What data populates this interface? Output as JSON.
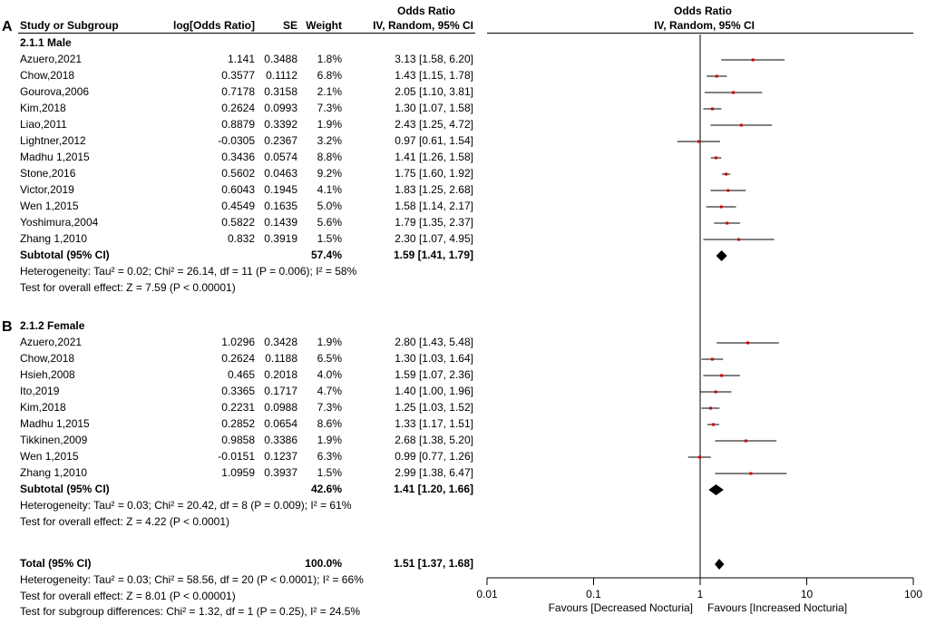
{
  "panels": {
    "a": "A",
    "b": "B"
  },
  "headers": {
    "study": "Study or Subgroup",
    "logor": "log[Odds Ratio]",
    "se": "SE",
    "weight": "Weight",
    "ci_title": "Odds Ratio",
    "ci_method": "IV, Random, 95% CI",
    "plot_title": "Odds Ratio",
    "plot_method": "IV, Random, 95% CI"
  },
  "groups": [
    {
      "label": "2.1.1 Male",
      "studies": [
        {
          "name": "Azuero,2021",
          "logor": "1.141",
          "se": "0.3488",
          "weight": "1.8%",
          "ci": "3.13 [1.58, 6.20]"
        },
        {
          "name": "Chow,2018",
          "logor": "0.3577",
          "se": "0.1112",
          "weight": "6.8%",
          "ci": "1.43 [1.15, 1.78]"
        },
        {
          "name": "Gourova,2006",
          "logor": "0.7178",
          "se": "0.3158",
          "weight": "2.1%",
          "ci": "2.05 [1.10, 3.81]"
        },
        {
          "name": "Kim,2018",
          "logor": "0.2624",
          "se": "0.0993",
          "weight": "7.3%",
          "ci": "1.30 [1.07, 1.58]"
        },
        {
          "name": "Liao,2011",
          "logor": "0.8879",
          "se": "0.3392",
          "weight": "1.9%",
          "ci": "2.43 [1.25, 4.72]"
        },
        {
          "name": "Lightner,2012",
          "logor": "-0.0305",
          "se": "0.2367",
          "weight": "3.2%",
          "ci": "0.97 [0.61, 1.54]"
        },
        {
          "name": "Madhu 1,2015",
          "logor": "0.3436",
          "se": "0.0574",
          "weight": "8.8%",
          "ci": "1.41 [1.26, 1.58]"
        },
        {
          "name": "Stone,2016",
          "logor": "0.5602",
          "se": "0.0463",
          "weight": "9.2%",
          "ci": "1.75 [1.60, 1.92]"
        },
        {
          "name": "Victor,2019",
          "logor": "0.6043",
          "se": "0.1945",
          "weight": "4.1%",
          "ci": "1.83 [1.25, 2.68]"
        },
        {
          "name": "Wen 1,2015",
          "logor": "0.4549",
          "se": "0.1635",
          "weight": "5.0%",
          "ci": "1.58 [1.14, 2.17]"
        },
        {
          "name": "Yoshimura,2004",
          "logor": "0.5822",
          "se": "0.1439",
          "weight": "5.6%",
          "ci": "1.79 [1.35, 2.37]"
        },
        {
          "name": "Zhang 1,2010",
          "logor": "0.832",
          "se": "0.3919",
          "weight": "1.5%",
          "ci": "2.30 [1.07, 4.95]"
        }
      ],
      "subtotal": {
        "label": "Subtotal (95% CI)",
        "weight": "57.4%",
        "ci": "1.59 [1.41, 1.79]"
      },
      "heterogeneity": "Heterogeneity: Tau² = 0.02; Chi² = 26.14, df = 11 (P = 0.006); I² = 58%",
      "overall": "Test for overall effect: Z = 7.59 (P < 0.00001)"
    },
    {
      "label": "2.1.2 Female",
      "studies": [
        {
          "name": "Azuero,2021",
          "logor": "1.0296",
          "se": "0.3428",
          "weight": "1.9%",
          "ci": "2.80 [1.43, 5.48]"
        },
        {
          "name": "Chow,2018",
          "logor": "0.2624",
          "se": "0.1188",
          "weight": "6.5%",
          "ci": "1.30 [1.03, 1.64]"
        },
        {
          "name": "Hsieh,2008",
          "logor": "0.465",
          "se": "0.2018",
          "weight": "4.0%",
          "ci": "1.59 [1.07, 2.36]"
        },
        {
          "name": "Ito,2019",
          "logor": "0.3365",
          "se": "0.1717",
          "weight": "4.7%",
          "ci": "1.40 [1.00, 1.96]"
        },
        {
          "name": "Kim,2018",
          "logor": "0.2231",
          "se": "0.0988",
          "weight": "7.3%",
          "ci": "1.25 [1.03, 1.52]"
        },
        {
          "name": "Madhu 1,2015",
          "logor": "0.2852",
          "se": "0.0654",
          "weight": "8.6%",
          "ci": "1.33 [1.17, 1.51]"
        },
        {
          "name": "Tikkinen,2009",
          "logor": "0.9858",
          "se": "0.3386",
          "weight": "1.9%",
          "ci": "2.68 [1.38, 5.20]"
        },
        {
          "name": "Wen 1,2015",
          "logor": "-0.0151",
          "se": "0.1237",
          "weight": "6.3%",
          "ci": "0.99 [0.77, 1.26]"
        },
        {
          "name": "Zhang 1,2010",
          "logor": "1.0959",
          "se": "0.3937",
          "weight": "1.5%",
          "ci": "2.99 [1.38, 6.47]"
        }
      ],
      "subtotal": {
        "label": "Subtotal (95% CI)",
        "weight": "42.6%",
        "ci": "1.41 [1.20, 1.66]"
      },
      "heterogeneity": "Heterogeneity: Tau² = 0.03; Chi² = 20.42, df = 8 (P = 0.009); I² = 61%",
      "overall": "Test for overall effect: Z = 4.22 (P < 0.0001)"
    }
  ],
  "total": {
    "label": "Total (95% CI)",
    "weight": "100.0%",
    "ci": "1.51 [1.37, 1.68]",
    "heterogeneity": "Heterogeneity: Tau² = 0.03; Chi² = 58.56, df = 20 (P < 0.0001); I² = 66%",
    "overall": "Test for overall effect: Z = 8.01 (P < 0.00001)",
    "subgroup_diff": "Test for subgroup differences: Chi² = 1.32, df = 1 (P = 0.25), I² = 24.5%"
  },
  "colors": {
    "point": "#cc0000",
    "line": "#000000"
  },
  "chart_data": {
    "type": "forest",
    "title": "Odds Ratio",
    "subtitle": "IV, Random, 95% CI",
    "x_scale": "log",
    "xlim": [
      0.01,
      100
    ],
    "x_ticks": [
      0.01,
      0.1,
      1,
      10,
      100
    ],
    "x_tick_labels": [
      "0.01",
      "0.1",
      "1",
      "10",
      "100"
    ],
    "null_line": 1,
    "favours_left": "Favours [Decreased Nocturia]",
    "favours_right": "Favours [Increased Nocturia]",
    "series": [
      {
        "name": "2.1.1 Male",
        "points": [
          {
            "or": 3.13,
            "lo": 1.58,
            "hi": 6.2
          },
          {
            "or": 1.43,
            "lo": 1.15,
            "hi": 1.78
          },
          {
            "or": 2.05,
            "lo": 1.1,
            "hi": 3.81
          },
          {
            "or": 1.3,
            "lo": 1.07,
            "hi": 1.58
          },
          {
            "or": 2.43,
            "lo": 1.25,
            "hi": 4.72
          },
          {
            "or": 0.97,
            "lo": 0.61,
            "hi": 1.54
          },
          {
            "or": 1.41,
            "lo": 1.26,
            "hi": 1.58
          },
          {
            "or": 1.75,
            "lo": 1.6,
            "hi": 1.92
          },
          {
            "or": 1.83,
            "lo": 1.25,
            "hi": 2.68
          },
          {
            "or": 1.58,
            "lo": 1.14,
            "hi": 2.17
          },
          {
            "or": 1.79,
            "lo": 1.35,
            "hi": 2.37
          },
          {
            "or": 2.3,
            "lo": 1.07,
            "hi": 4.95
          }
        ],
        "subtotal": {
          "or": 1.59,
          "lo": 1.41,
          "hi": 1.79
        }
      },
      {
        "name": "2.1.2 Female",
        "points": [
          {
            "or": 2.8,
            "lo": 1.43,
            "hi": 5.48
          },
          {
            "or": 1.3,
            "lo": 1.03,
            "hi": 1.64
          },
          {
            "or": 1.59,
            "lo": 1.07,
            "hi": 2.36
          },
          {
            "or": 1.4,
            "lo": 1.0,
            "hi": 1.96
          },
          {
            "or": 1.25,
            "lo": 1.03,
            "hi": 1.52
          },
          {
            "or": 1.33,
            "lo": 1.17,
            "hi": 1.51
          },
          {
            "or": 2.68,
            "lo": 1.38,
            "hi": 5.2
          },
          {
            "or": 0.99,
            "lo": 0.77,
            "hi": 1.26
          },
          {
            "or": 2.99,
            "lo": 1.38,
            "hi": 6.47
          }
        ],
        "subtotal": {
          "or": 1.41,
          "lo": 1.2,
          "hi": 1.66
        }
      }
    ],
    "total": {
      "or": 1.51,
      "lo": 1.37,
      "hi": 1.68
    }
  }
}
